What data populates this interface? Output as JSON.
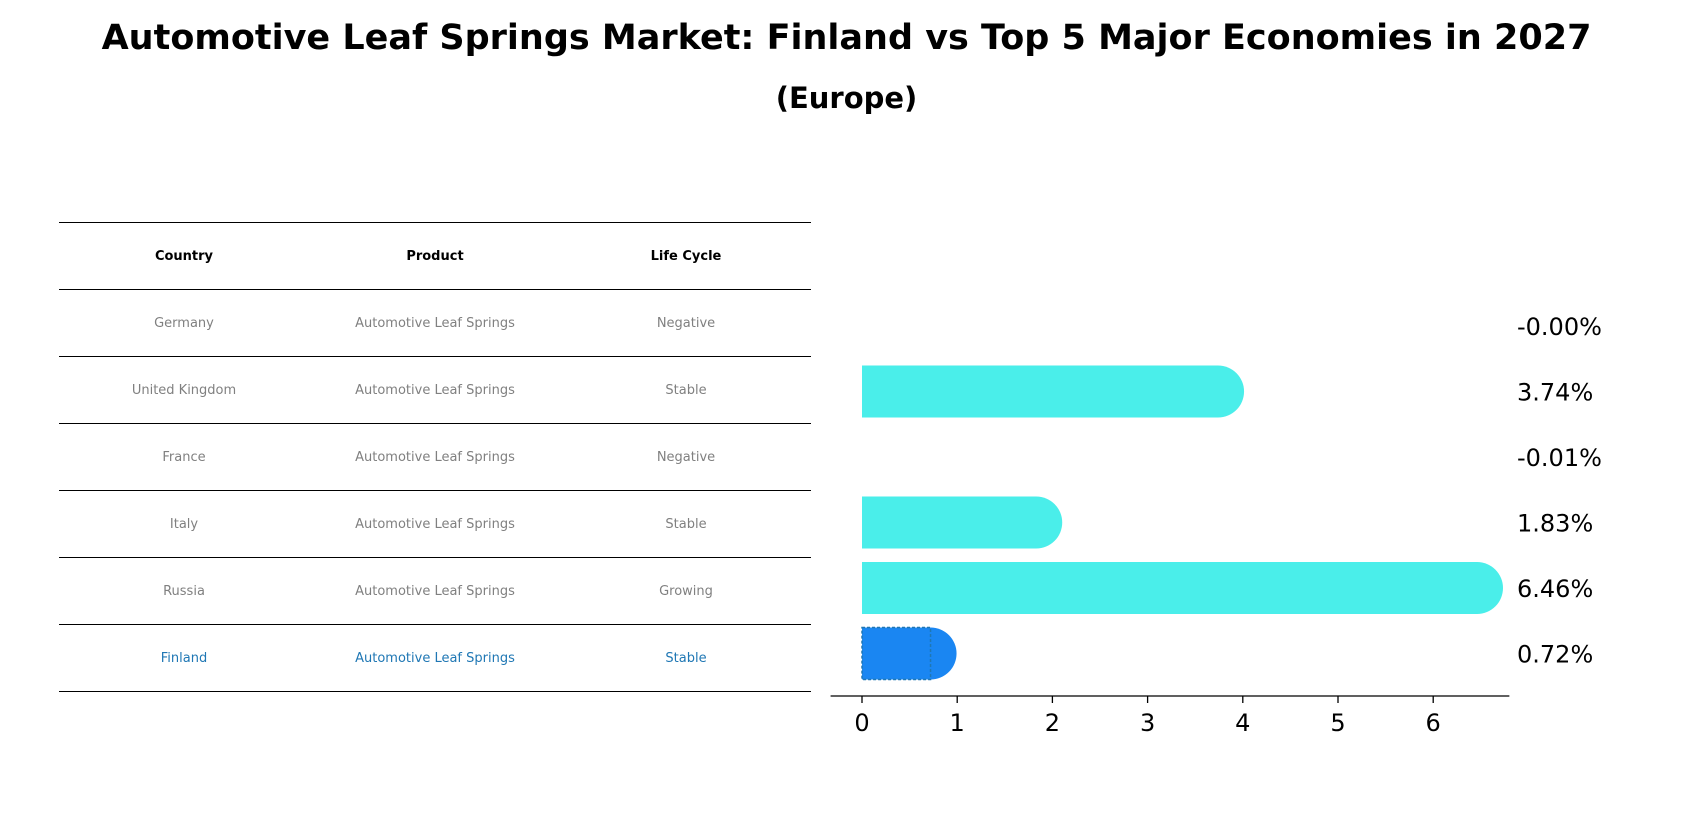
{
  "title": "Automotive Leaf Springs Market: Finland vs Top 5 Major Economies in 2027",
  "subtitle": "(Europe)",
  "table": {
    "headers": [
      "Country",
      "Product",
      "Life Cycle"
    ],
    "rows": [
      [
        "Germany",
        "Automotive Leaf Springs",
        "Negative"
      ],
      [
        "United Kingdom",
        "Automotive Leaf Springs",
        "Stable"
      ],
      [
        "France",
        "Automotive Leaf Springs",
        "Negative"
      ],
      [
        "Italy",
        "Automotive Leaf Springs",
        "Stable"
      ],
      [
        "Russia",
        "Automotive Leaf Springs",
        "Growing"
      ],
      [
        "Finland",
        "Automotive Leaf Springs",
        "Stable"
      ]
    ],
    "highlight_row": "Finland"
  },
  "chart_data": {
    "type": "bar",
    "orientation": "horizontal",
    "categories": [
      "Germany",
      "United Kingdom",
      "France",
      "Italy",
      "Russia",
      "Finland"
    ],
    "values": [
      -0.0,
      3.74,
      -0.01,
      1.83,
      6.46,
      0.72
    ],
    "value_labels": [
      "-0.00%",
      "3.74%",
      "-0.01%",
      "1.83%",
      "6.46%",
      "0.72%"
    ],
    "xlim": [
      -0.33,
      6.8
    ],
    "xticks": [
      0,
      1,
      2,
      3,
      4,
      5,
      6
    ],
    "grid": false,
    "legend": "none",
    "colors": {
      "bar": "#4aeeea",
      "highlight": "#1a86f2",
      "highlight_edge": "#1f77b4"
    }
  }
}
